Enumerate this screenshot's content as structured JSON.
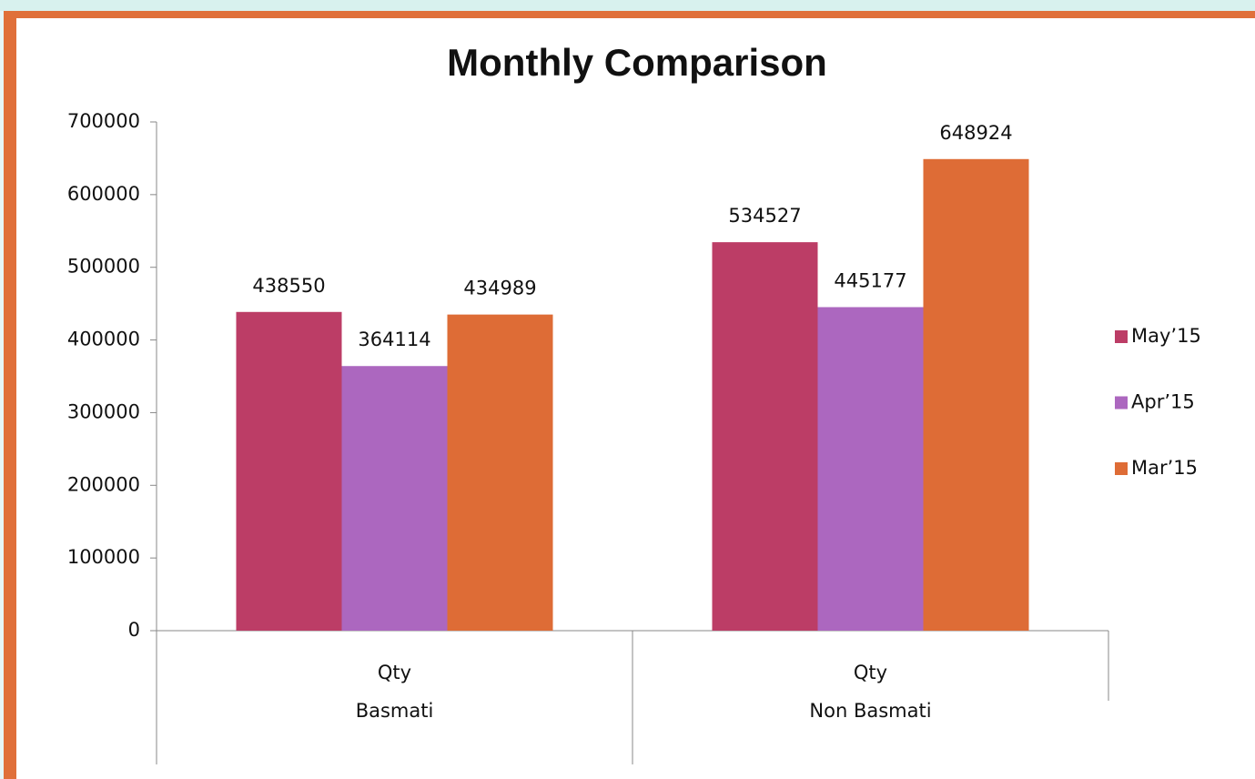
{
  "chart_data": {
    "type": "bar",
    "title": "Monthly Comparison",
    "categories": [
      "Qty",
      "Qty"
    ],
    "category_groups": [
      "Basmati",
      "Non Basmati"
    ],
    "series": [
      {
        "name": "May’15",
        "color": "#bc3d66",
        "values": [
          438550,
          534527
        ]
      },
      {
        "name": "Apr’15",
        "color": "#ac67bf",
        "values": [
          364114,
          445177
        ]
      },
      {
        "name": "Mar’15",
        "color": "#de6c36",
        "values": [
          434989,
          648924
        ]
      }
    ],
    "ylim": [
      0,
      700000
    ],
    "yticks": [
      0,
      100000,
      200000,
      300000,
      400000,
      500000,
      600000,
      700000
    ],
    "legend": "right"
  }
}
